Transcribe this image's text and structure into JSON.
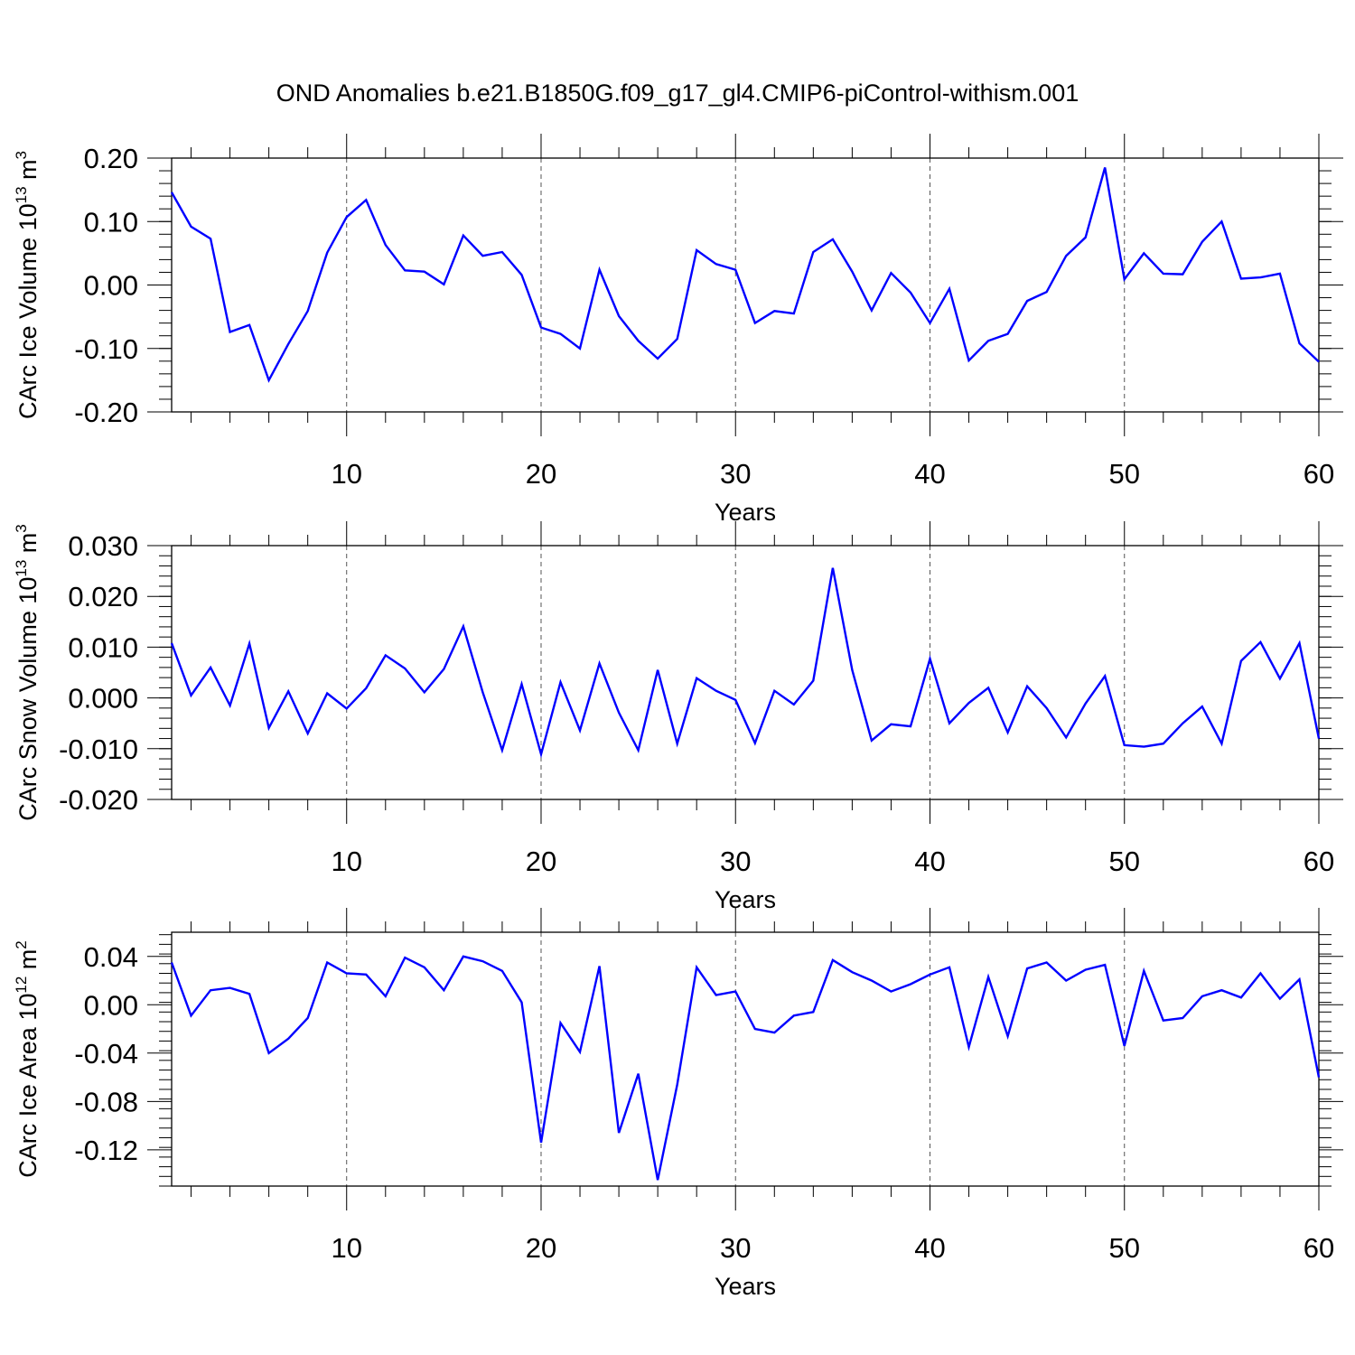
{
  "title": "OND Anomalies b.e21.B1850G.f09_g17_gl4.CMIP6-piControl-withism.001",
  "line_color": "#0000ff",
  "chart_data": [
    {
      "type": "line",
      "xlabel": "Years",
      "ylabel": {
        "text": "CArc Ice Volume 10",
        "exp": "13",
        "unit": "m",
        "unit_exp": "3"
      },
      "xlim": [
        1,
        60
      ],
      "ylim": [
        -0.2,
        0.2
      ],
      "xticks": [
        10,
        20,
        30,
        40,
        50,
        60
      ],
      "xtick_labels": [
        "10",
        "20",
        "30",
        "40",
        "50",
        "60"
      ],
      "yticks": [
        -0.2,
        -0.1,
        0.0,
        0.1,
        0.2
      ],
      "ytick_labels": [
        "-0.20",
        "-0.10",
        "0.00",
        "0.10",
        "0.20"
      ],
      "grid": "dashed vertical at major x ticks",
      "x": [
        1,
        2,
        3,
        4,
        5,
        6,
        7,
        8,
        9,
        10,
        11,
        12,
        13,
        14,
        15,
        16,
        17,
        18,
        19,
        20,
        21,
        22,
        23,
        24,
        25,
        26,
        27,
        28,
        29,
        30,
        31,
        32,
        33,
        34,
        35,
        36,
        37,
        38,
        39,
        40,
        41,
        42,
        43,
        44,
        45,
        46,
        47,
        48,
        49,
        50,
        51,
        52,
        53,
        54,
        55,
        56,
        57,
        58,
        59,
        60
      ],
      "series": [
        {
          "values": [
            0.146,
            0.092,
            0.073,
            -0.074,
            -0.063,
            -0.15,
            -0.093,
            -0.041,
            0.051,
            0.107,
            0.134,
            0.063,
            0.023,
            0.021,
            0.001,
            0.078,
            0.046,
            0.052,
            0.016,
            -0.067,
            -0.077,
            -0.1,
            0.024,
            -0.049,
            -0.088,
            -0.116,
            -0.085,
            0.055,
            0.033,
            0.024,
            -0.06,
            -0.041,
            -0.045,
            0.052,
            0.072,
            0.021,
            -0.04,
            0.019,
            -0.012,
            -0.06,
            -0.006,
            -0.119,
            -0.088,
            -0.077,
            -0.025,
            -0.011,
            0.046,
            0.075,
            0.185,
            0.009,
            0.05,
            0.018,
            0.017,
            0.068,
            0.1,
            0.01,
            0.012,
            0.018,
            -0.092,
            -0.121
          ]
        }
      ]
    },
    {
      "type": "line",
      "xlabel": "Years",
      "ylabel": {
        "text": "CArc Snow Volume 10",
        "exp": "13",
        "unit": "m",
        "unit_exp": "3"
      },
      "xlim": [
        1,
        60
      ],
      "ylim": [
        -0.02,
        0.03
      ],
      "xticks": [
        10,
        20,
        30,
        40,
        50,
        60
      ],
      "xtick_labels": [
        "10",
        "20",
        "30",
        "40",
        "50",
        "60"
      ],
      "yticks": [
        -0.02,
        -0.01,
        0.0,
        0.01,
        0.02,
        0.03
      ],
      "ytick_labels": [
        "-0.020",
        "-0.010",
        "0.000",
        "0.010",
        "0.020",
        "0.030"
      ],
      "grid": "dashed vertical at major x ticks",
      "x": [
        1,
        2,
        3,
        4,
        5,
        6,
        7,
        8,
        9,
        10,
        11,
        12,
        13,
        14,
        15,
        16,
        17,
        18,
        19,
        20,
        21,
        22,
        23,
        24,
        25,
        26,
        27,
        28,
        29,
        30,
        31,
        32,
        33,
        34,
        35,
        36,
        37,
        38,
        39,
        40,
        41,
        42,
        43,
        44,
        45,
        46,
        47,
        48,
        49,
        50,
        51,
        52,
        53,
        54,
        55,
        56,
        57,
        58,
        59,
        60
      ],
      "series": [
        {
          "values": [
            0.0108,
            0.0005,
            0.006,
            -0.0015,
            0.0107,
            -0.0059,
            0.0013,
            -0.007,
            0.0009,
            -0.0021,
            0.0019,
            0.0084,
            0.0058,
            0.0011,
            0.0057,
            0.0141,
            0.0011,
            -0.0103,
            0.0027,
            -0.0111,
            0.0031,
            -0.0064,
            0.0068,
            -0.0029,
            -0.0103,
            0.0055,
            -0.009,
            0.0039,
            0.0014,
            -0.0004,
            -0.0089,
            0.0014,
            -0.0013,
            0.0034,
            0.0256,
            0.0055,
            -0.0084,
            -0.0052,
            -0.0056,
            0.0077,
            -0.005,
            -0.001,
            0.002,
            -0.0068,
            0.0023,
            -0.002,
            -0.0078,
            -0.0011,
            0.0043,
            -0.0093,
            -0.0096,
            -0.009,
            -0.005,
            -0.0017,
            -0.009,
            0.0073,
            0.011,
            0.0038,
            0.0108,
            -0.008
          ]
        }
      ]
    },
    {
      "type": "line",
      "xlabel": "Years",
      "ylabel": {
        "text": "CArc Ice Area 10",
        "exp": "12",
        "unit": "m",
        "unit_exp": "2"
      },
      "xlim": [
        1,
        60
      ],
      "ylim": [
        -0.15,
        0.06
      ],
      "xticks": [
        10,
        20,
        30,
        40,
        50,
        60
      ],
      "xtick_labels": [
        "10",
        "20",
        "30",
        "40",
        "50",
        "60"
      ],
      "yticks": [
        -0.12,
        -0.08,
        -0.04,
        0.0,
        0.04
      ],
      "ytick_labels": [
        "-0.12",
        "-0.08",
        "-0.04",
        "0.00",
        "0.04"
      ],
      "grid": "dashed vertical at major x ticks",
      "x": [
        1,
        2,
        3,
        4,
        5,
        6,
        7,
        8,
        9,
        10,
        11,
        12,
        13,
        14,
        15,
        16,
        17,
        18,
        19,
        20,
        21,
        22,
        23,
        24,
        25,
        26,
        27,
        28,
        29,
        30,
        31,
        32,
        33,
        34,
        35,
        36,
        37,
        38,
        39,
        40,
        41,
        42,
        43,
        44,
        45,
        46,
        47,
        48,
        49,
        50,
        51,
        52,
        53,
        54,
        55,
        56,
        57,
        58,
        59,
        60
      ],
      "series": [
        {
          "values": [
            0.035,
            -0.009,
            0.012,
            0.014,
            0.009,
            -0.04,
            -0.028,
            -0.011,
            0.035,
            0.026,
            0.025,
            0.007,
            0.039,
            0.031,
            0.012,
            0.04,
            0.036,
            0.028,
            0.002,
            -0.114,
            -0.015,
            -0.039,
            0.032,
            -0.106,
            -0.057,
            -0.145,
            -0.066,
            0.031,
            0.008,
            0.011,
            -0.02,
            -0.023,
            -0.009,
            -0.006,
            0.037,
            0.027,
            0.02,
            0.011,
            0.017,
            0.025,
            0.031,
            -0.035,
            0.023,
            -0.026,
            0.03,
            0.035,
            0.02,
            0.029,
            0.033,
            -0.034,
            0.028,
            -0.013,
            -0.011,
            0.007,
            0.012,
            0.006,
            0.026,
            0.005,
            0.021,
            -0.06
          ]
        }
      ]
    }
  ]
}
